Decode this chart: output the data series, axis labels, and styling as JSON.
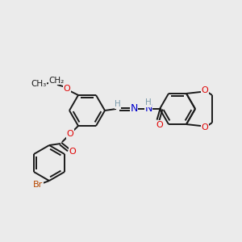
{
  "bg_color": "#ebebeb",
  "bond_color": "#1a1a1a",
  "bond_width": 1.4,
  "atom_colors": {
    "O": "#e00000",
    "N": "#0000cc",
    "Br": "#b84800",
    "H": "#7a9aaa",
    "C": "#1a1a1a"
  },
  "scale": 1.0
}
